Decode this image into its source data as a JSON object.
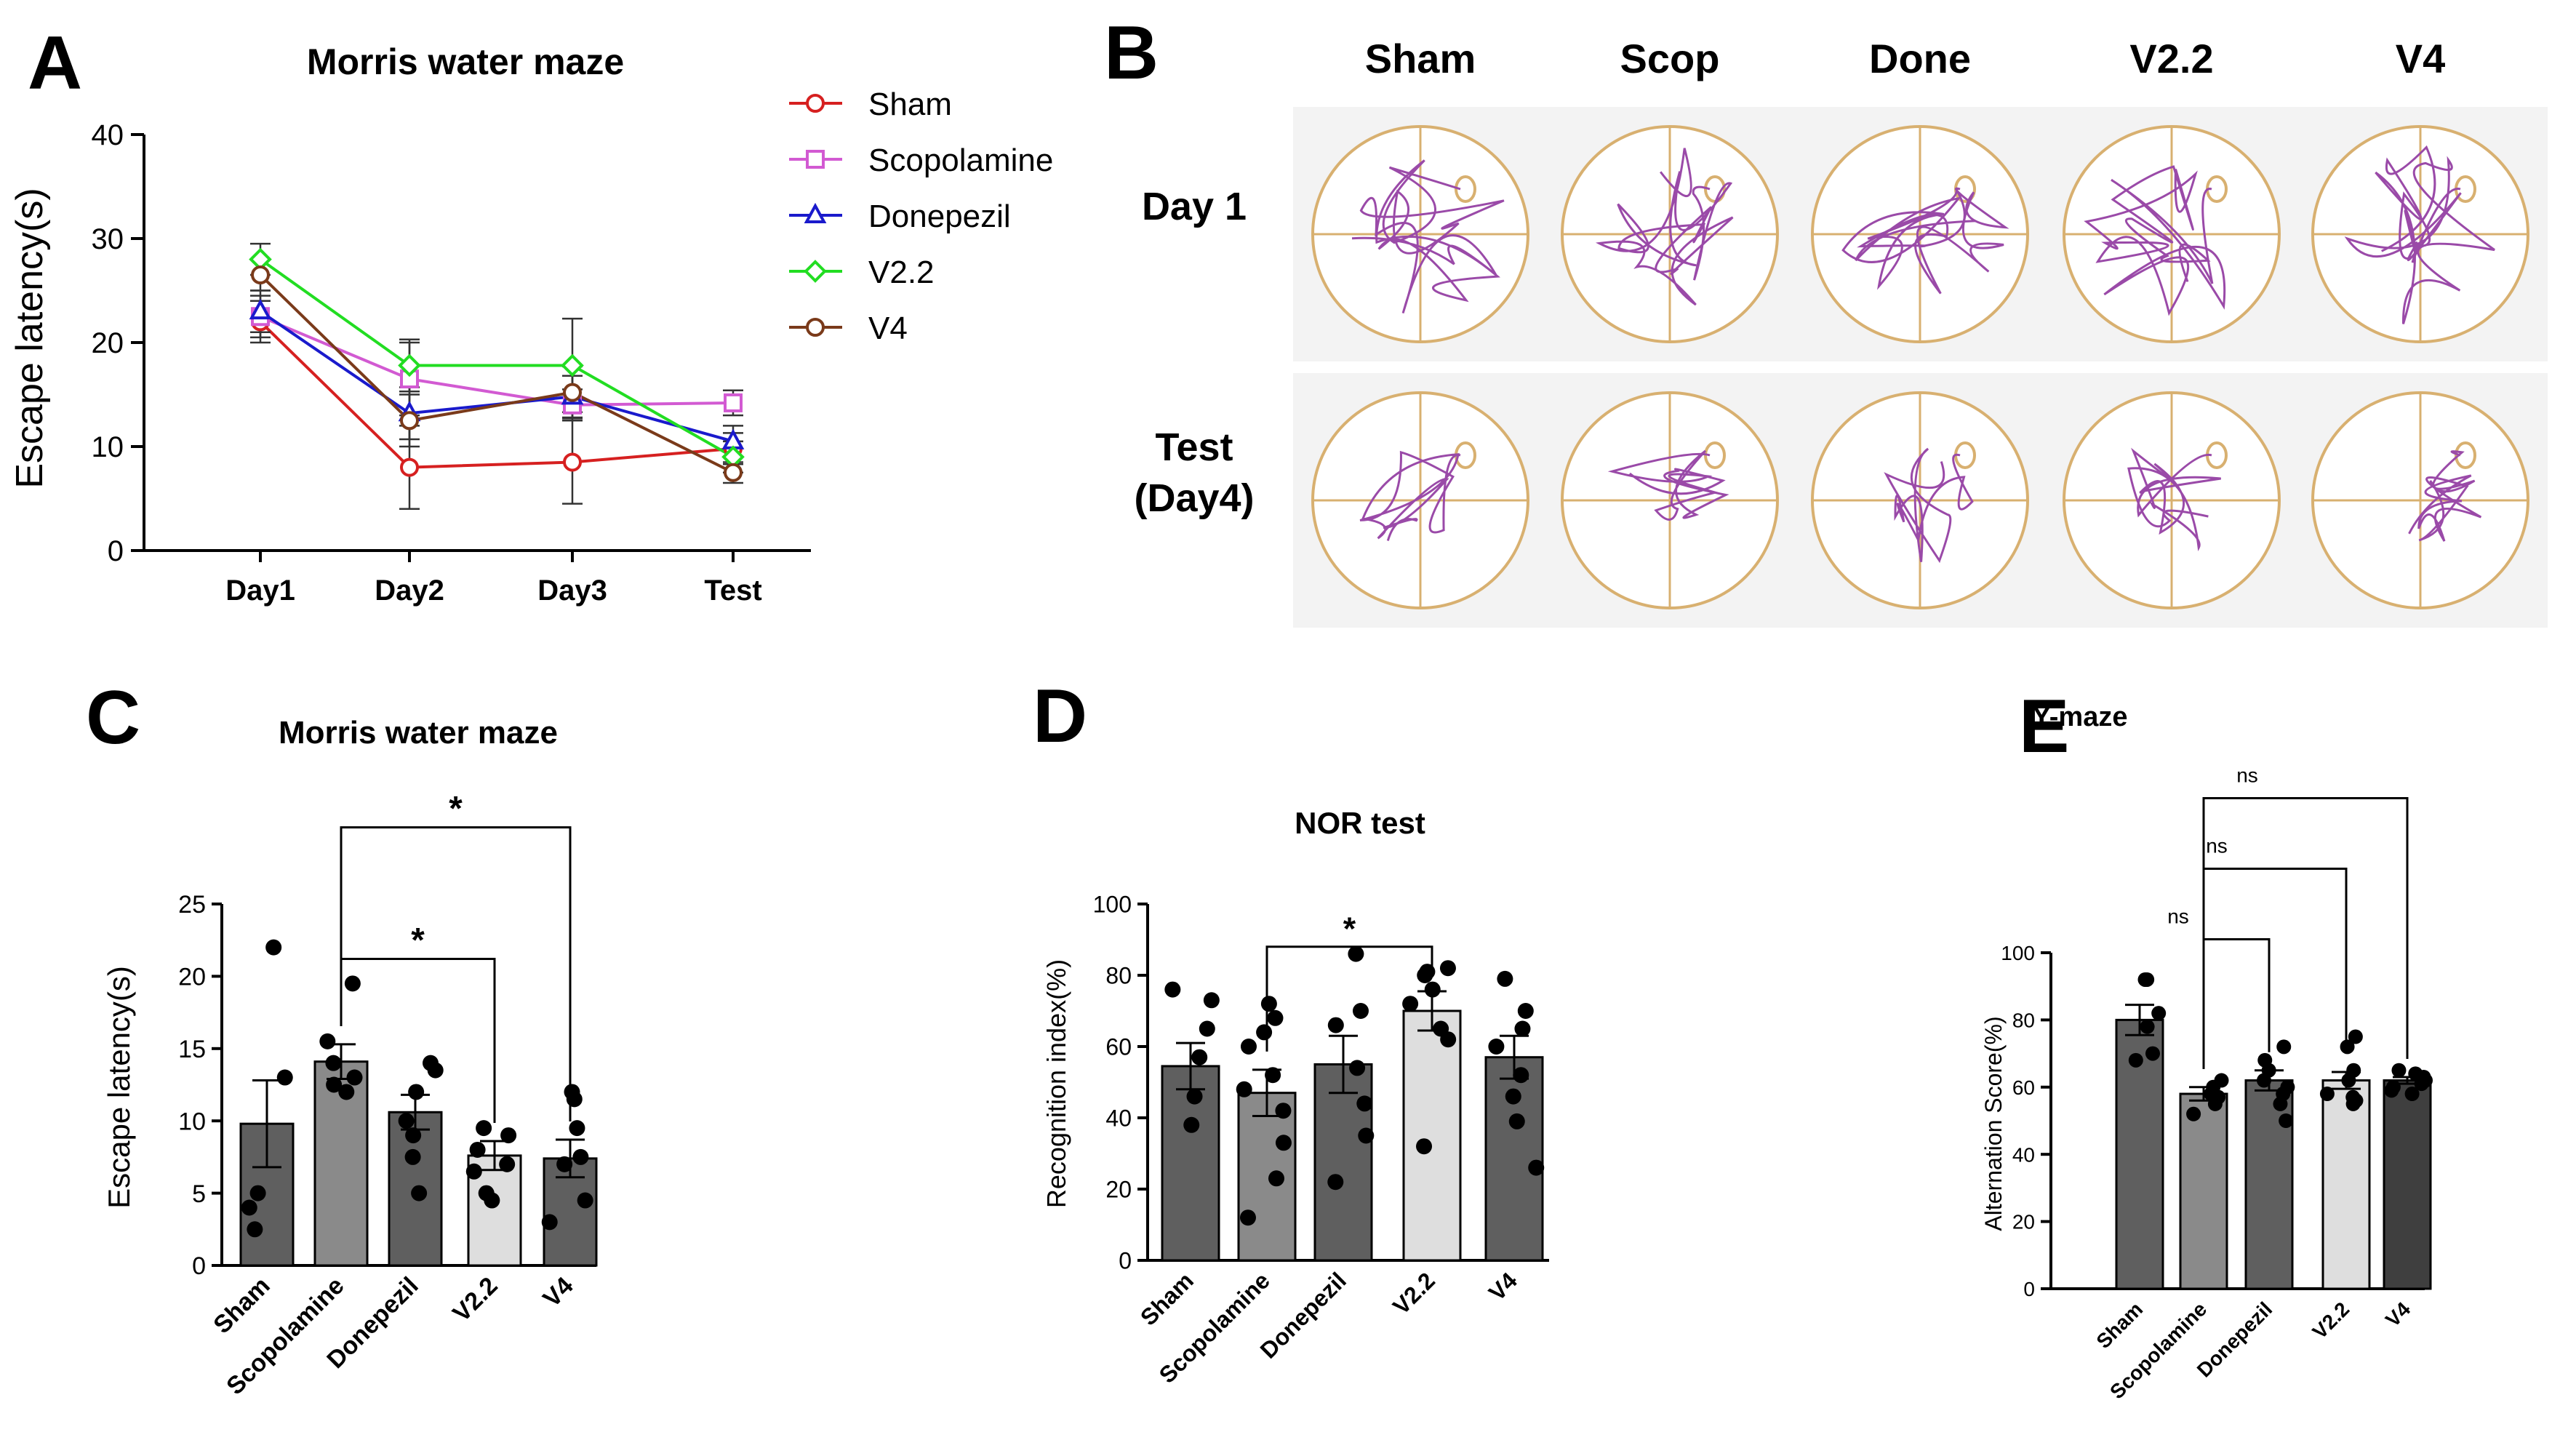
{
  "colors": {
    "sham": "#d62020",
    "scopolamine": "#d25ad2",
    "donepezil": "#1a1acc",
    "v22": "#22dd22",
    "v4": "#7a3a1a",
    "maze_circle": "#d8b070",
    "track": "#9a4aa8",
    "bar_dark": "#5f5f5f",
    "bar_mid": "#8a8a8a",
    "bar_light": "#dedede",
    "bar_v4": "#3f3f3f"
  },
  "panel_a": {
    "label": "A",
    "chart_data": {
      "type": "line",
      "title": "Morris water maze",
      "xlabel": "",
      "ylabel": "Escape latency(s)",
      "categories": [
        "Day1",
        "Day2",
        "Day3",
        "Test"
      ],
      "ylim": [
        0,
        40
      ],
      "yticks": [
        0,
        10,
        20,
        30,
        40
      ],
      "legend_position": "top-right",
      "series": [
        {
          "name": "Sham",
          "key": "sham",
          "marker": "circle",
          "values": [
            22,
            8,
            8.5,
            9.8
          ],
          "err": [
            2,
            4,
            4,
            1.5
          ]
        },
        {
          "name": "Scopolamine",
          "key": "scopolamine",
          "marker": "square",
          "values": [
            22.5,
            16.5,
            14,
            14.2
          ],
          "err": [
            2,
            3.5,
            1.5,
            1.2
          ]
        },
        {
          "name": "Donepezil",
          "key": "donepezil",
          "marker": "triangle",
          "values": [
            23,
            13.2,
            14.8,
            10.5
          ],
          "err": [
            2,
            2.5,
            2,
            1.5
          ]
        },
        {
          "name": "V2.2",
          "key": "v22",
          "marker": "diamond",
          "values": [
            28,
            17.8,
            17.8,
            9
          ],
          "err": [
            1.5,
            2.5,
            4.5,
            1.5
          ]
        },
        {
          "name": "V4",
          "key": "v4",
          "marker": "circle",
          "values": [
            26.5,
            12.5,
            15.2,
            7.5
          ],
          "err": [
            1.5,
            2.5,
            2.5,
            1
          ]
        }
      ]
    }
  },
  "panel_b": {
    "label": "B",
    "columns": [
      "Sham",
      "Scop",
      "Done",
      "V2.2",
      "V4"
    ],
    "rows": [
      {
        "label_lines": [
          "Day 1"
        ]
      },
      {
        "label_lines": [
          "Test",
          "(Day4)"
        ]
      }
    ]
  },
  "panel_c": {
    "label": "C",
    "chart_data": {
      "type": "bar",
      "title": "Morris water maze",
      "ylabel": "Escape latency(s)",
      "categories": [
        "Sham",
        "Scopolamine",
        "Donepezil",
        "V2.2",
        "V4"
      ],
      "values": [
        9.8,
        14.1,
        10.6,
        7.6,
        7.4
      ],
      "sem": [
        3.0,
        1.2,
        1.2,
        1.0,
        1.3
      ],
      "points": [
        [
          22,
          13,
          5,
          4,
          2.5
        ],
        [
          19.5,
          15.5,
          14,
          13,
          12.5,
          12
        ],
        [
          14,
          13.5,
          12,
          10,
          9,
          7.5,
          5
        ],
        [
          9.5,
          9,
          8,
          7,
          6.5,
          5,
          4.5
        ],
        [
          12,
          11.5,
          9.5,
          7.5,
          7,
          4.5,
          3
        ]
      ],
      "ylim": [
        0,
        25
      ],
      "yticks": [
        0,
        5,
        10,
        15,
        20,
        25
      ],
      "bar_colors": [
        "bar_dark",
        "bar_mid",
        "bar_dark",
        "bar_light",
        "bar_dark"
      ],
      "annotations": [
        {
          "from": 1,
          "to": 3,
          "y": 21.2,
          "text": "*"
        },
        {
          "from": 1,
          "to": 4,
          "y": 30.3,
          "text": "*"
        }
      ]
    }
  },
  "panel_d": {
    "label": "D",
    "chart_data": {
      "type": "bar",
      "title": "NOR test",
      "ylabel": "Recognition index(%)",
      "categories": [
        "Sham",
        "Scopolamine",
        "Donepezil",
        "V2.2",
        "V4"
      ],
      "values": [
        54.5,
        47,
        55,
        70,
        57
      ],
      "sem": [
        6.5,
        6.5,
        8,
        5.5,
        6
      ],
      "points": [
        [
          76,
          73,
          65,
          57,
          46,
          38
        ],
        [
          72,
          68,
          64,
          60,
          52,
          48,
          42,
          33,
          23,
          12
        ],
        [
          86,
          70,
          66,
          54,
          44,
          35,
          22
        ],
        [
          80,
          81,
          82,
          76,
          72,
          65,
          62,
          32
        ],
        [
          79,
          70,
          65,
          60,
          52,
          46,
          39,
          26
        ]
      ],
      "ylim": [
        0,
        100
      ],
      "yticks": [
        0,
        20,
        40,
        60,
        80,
        100
      ],
      "bar_colors": [
        "bar_dark",
        "bar_mid",
        "bar_dark",
        "bar_light",
        "bar_dark"
      ],
      "annotations": [
        {
          "from": 1,
          "to": 3,
          "y": 88,
          "text": "*"
        }
      ]
    }
  },
  "panel_e": {
    "label": "E",
    "chart_data": {
      "type": "bar",
      "title": "Y-maze",
      "ylabel": "Alternation Score(%)",
      "categories": [
        "Sham",
        "Scopolamine",
        "Donepezil",
        "V2.2",
        "V4"
      ],
      "values": [
        80,
        58,
        62,
        62,
        62
      ],
      "sem": [
        4.5,
        2,
        3,
        2.5,
        1
      ],
      "points": [
        [
          92,
          92,
          82,
          78,
          70,
          68
        ],
        [
          62,
          60,
          58,
          57,
          55,
          52
        ],
        [
          72,
          68,
          65,
          62,
          60,
          58,
          55,
          50
        ],
        [
          75,
          72,
          65,
          62,
          58,
          57,
          56,
          55
        ],
        [
          65,
          64,
          63,
          62,
          61,
          60,
          59,
          58
        ]
      ],
      "ylim": [
        0,
        100
      ],
      "yticks": [
        0,
        20,
        40,
        60,
        80,
        100
      ],
      "bar_colors": [
        "bar_dark",
        "bar_mid",
        "bar_dark",
        "bar_light",
        "bar_v4"
      ],
      "annotations": [
        {
          "from": 1,
          "to": 2,
          "y": 104,
          "text": "ns"
        },
        {
          "from": 1,
          "to": 3,
          "y": 125,
          "text": "ns"
        },
        {
          "from": 1,
          "to": 4,
          "y": 146,
          "text": "ns"
        }
      ]
    }
  }
}
